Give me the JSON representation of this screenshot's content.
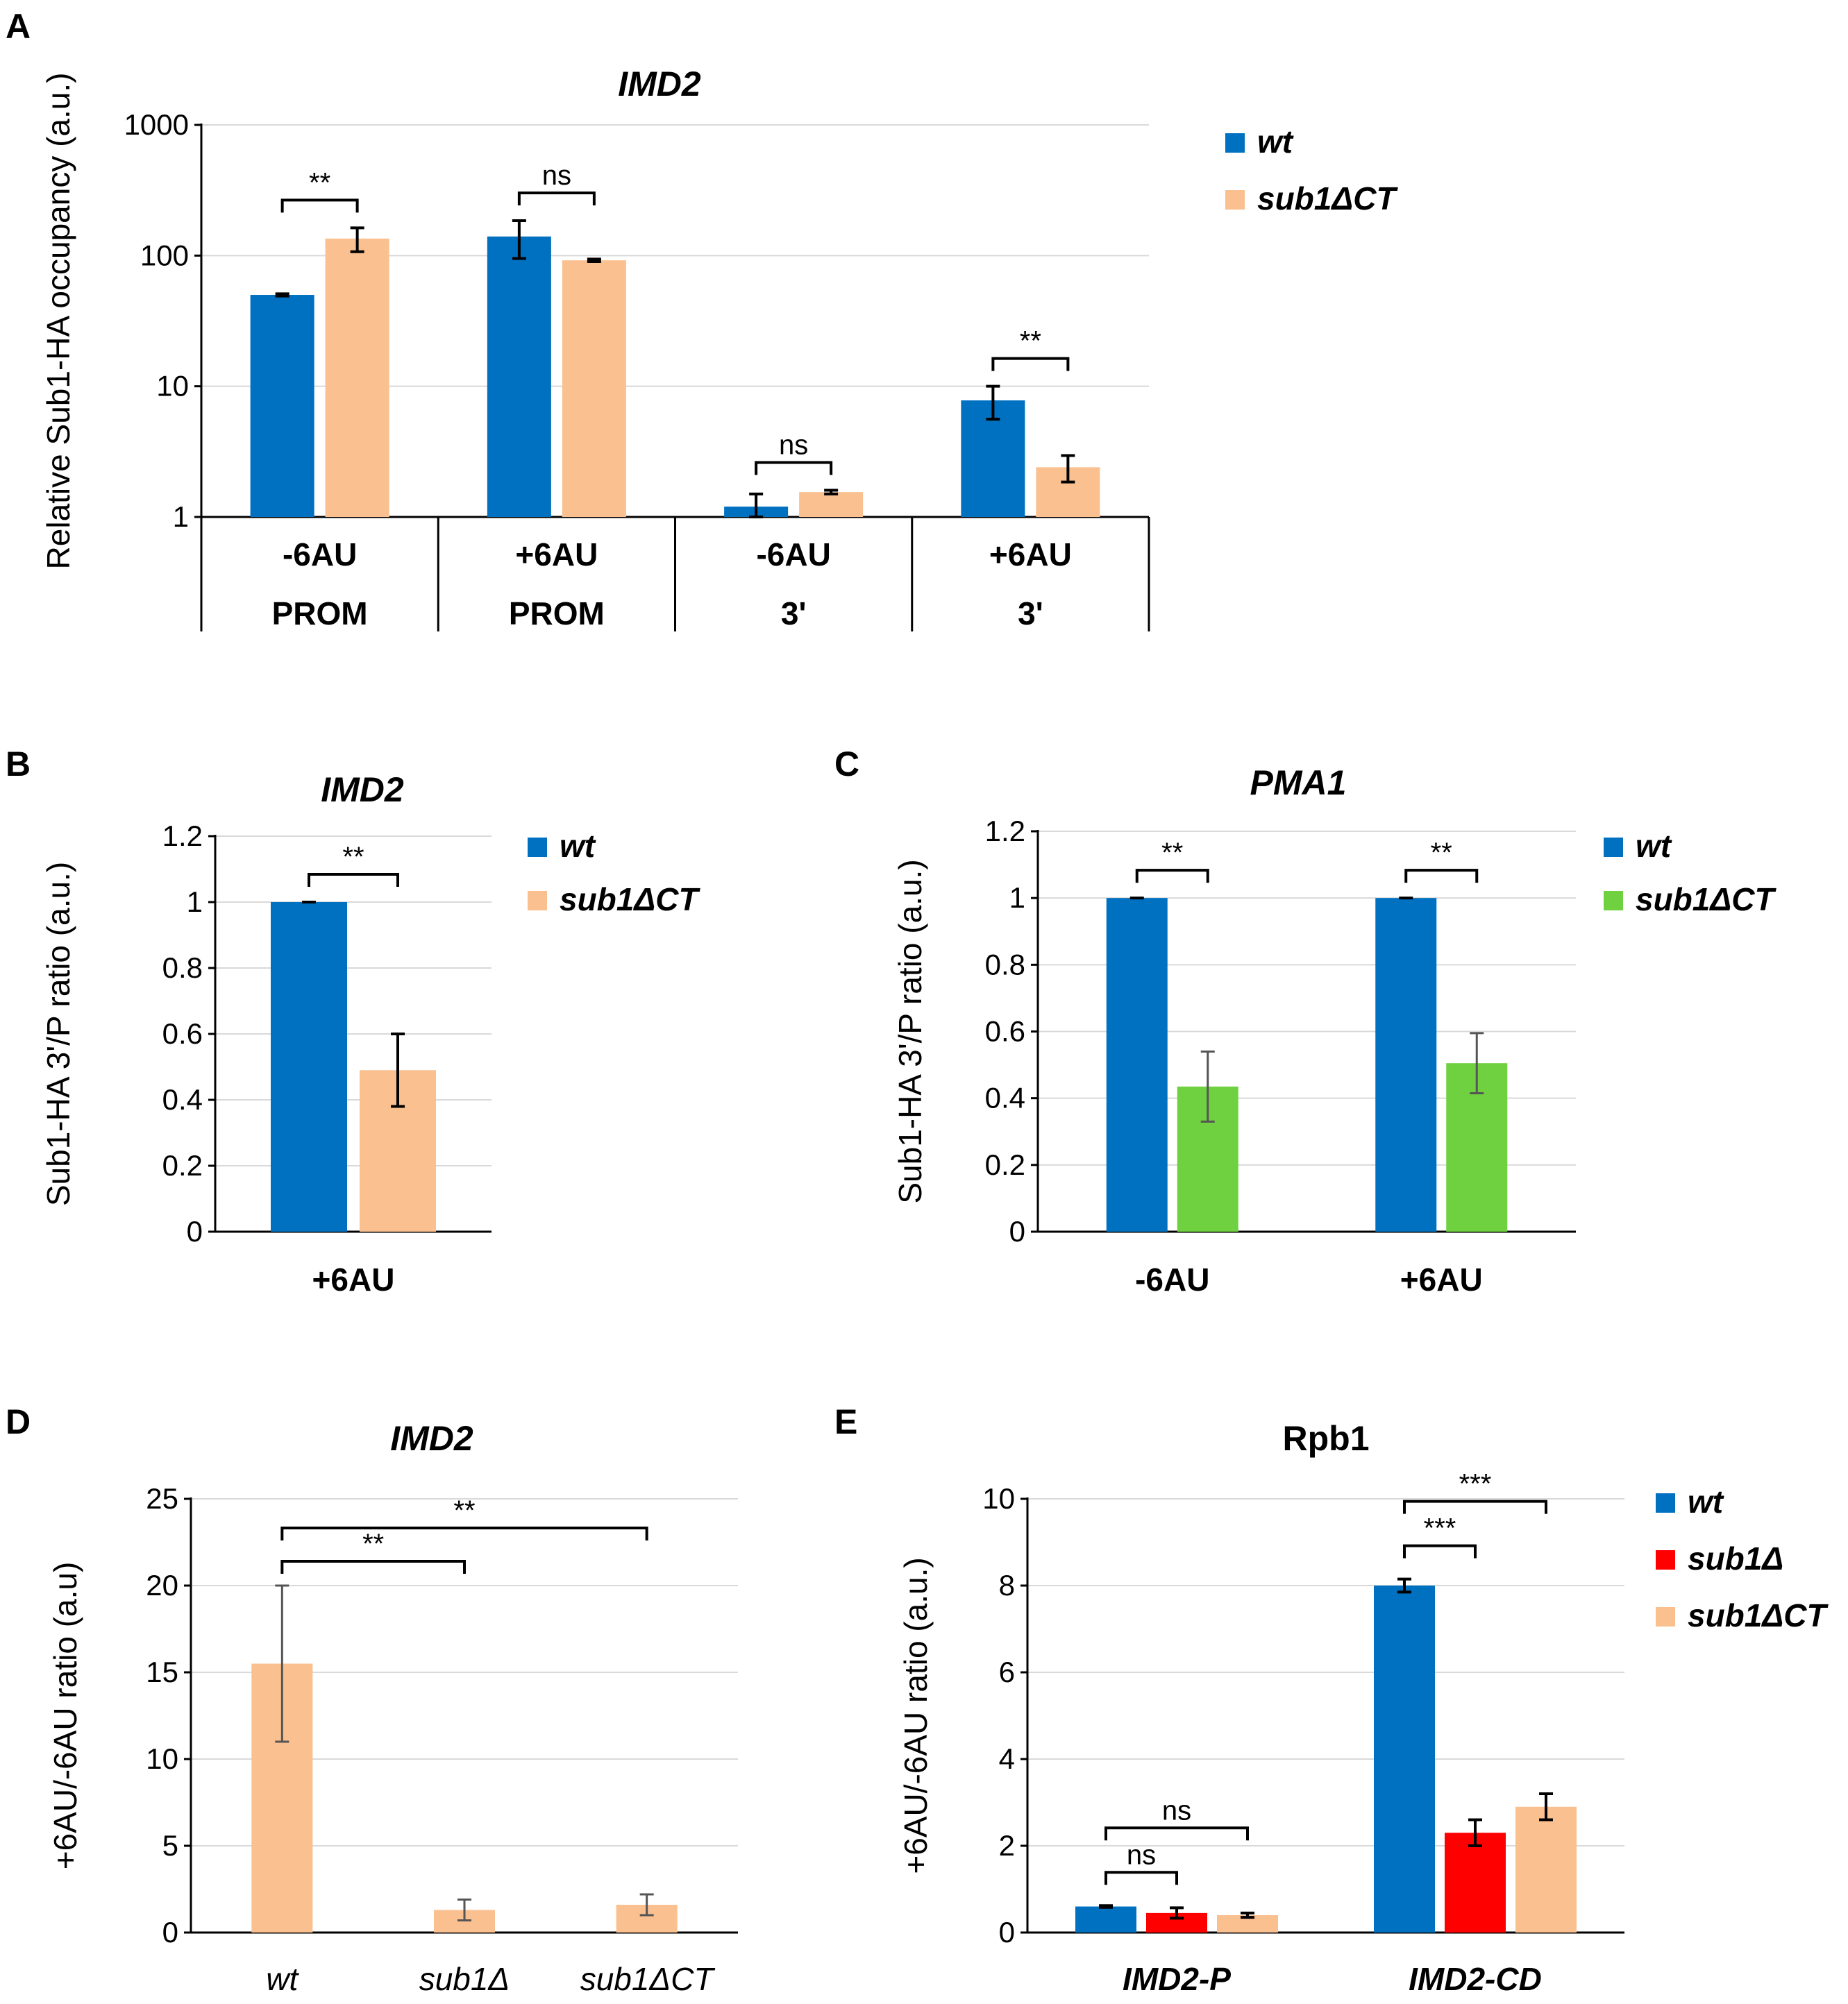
{
  "colors": {
    "wt": "#0070c0",
    "sub1dCT_orange": "#fac090",
    "sub1dCT_green": "#6fd040",
    "sub1d_red": "#ff0000"
  },
  "panels": {
    "A": {
      "label": "A"
    },
    "B": {
      "label": "B"
    },
    "C": {
      "label": "C"
    },
    "D": {
      "label": "D"
    },
    "E": {
      "label": "E"
    }
  },
  "chart_data": [
    {
      "id": "A",
      "type": "bar",
      "scale": "log",
      "title": "IMD2",
      "ylabel": "Relative Sub1-HA occupancy (a.u.)",
      "ylim": [
        1,
        1000
      ],
      "yticks": [
        "1",
        "10",
        "100",
        "1000"
      ],
      "categories": [
        {
          "line1": "-6AU",
          "line2": "PROM"
        },
        {
          "line1": "+6AU",
          "line2": "PROM"
        },
        {
          "line1": "-6AU",
          "line2": "3'"
        },
        {
          "line1": "+6AU",
          "line2": "3'"
        }
      ],
      "series": [
        {
          "name": "wt",
          "color": "#0070c0",
          "values": [
            50,
            140,
            1.2,
            7.8
          ],
          "errors": [
            1,
            45,
            0.3,
            2.2
          ]
        },
        {
          "name": "sub1ΔCT",
          "color": "#fac090",
          "values": [
            135,
            92,
            1.55,
            2.4
          ],
          "errors": [
            28,
            2,
            0.05,
            0.55
          ]
        }
      ],
      "significance": [
        {
          "group": 0,
          "label": "**"
        },
        {
          "group": 1,
          "label": "ns"
        },
        {
          "group": 2,
          "label": "ns"
        },
        {
          "group": 3,
          "label": "**"
        }
      ],
      "legend": [
        "wt",
        "sub1ΔCT"
      ]
    },
    {
      "id": "B",
      "type": "bar",
      "title": "IMD2",
      "ylabel": "Sub1-HA 3'/P ratio (a.u.)",
      "ylim": [
        0,
        1.2
      ],
      "yticks": [
        "0",
        "0.2",
        "0.4",
        "0.6",
        "0.8",
        "1",
        "1.2"
      ],
      "categories": [
        "+6AU"
      ],
      "series": [
        {
          "name": "wt",
          "color": "#0070c0",
          "values": [
            1.0
          ],
          "errors": [
            0
          ]
        },
        {
          "name": "sub1ΔCT",
          "color": "#fac090",
          "values": [
            0.49
          ],
          "errors": [
            0.11
          ]
        }
      ],
      "significance": [
        {
          "group": 0,
          "label": "**"
        }
      ],
      "legend": [
        "wt",
        "sub1ΔCT"
      ]
    },
    {
      "id": "C",
      "type": "bar",
      "title": "PMA1",
      "ylabel": "Sub1-HA 3'/P ratio (a.u.)",
      "ylim": [
        0,
        1.2
      ],
      "yticks": [
        "0",
        "0.2",
        "0.4",
        "0.6",
        "0.8",
        "1",
        "1.2"
      ],
      "categories": [
        "-6AU",
        "+6AU"
      ],
      "series": [
        {
          "name": "wt",
          "color": "#0070c0",
          "values": [
            1.0,
            1.0
          ],
          "errors": [
            0,
            0
          ]
        },
        {
          "name": "sub1ΔCT",
          "color": "#6fd040",
          "values": [
            0.435,
            0.505
          ],
          "errors": [
            0.105,
            0.09
          ]
        }
      ],
      "significance": [
        {
          "group": 0,
          "label": "**"
        },
        {
          "group": 1,
          "label": "**"
        }
      ],
      "legend": [
        "wt",
        "sub1ΔCT"
      ]
    },
    {
      "id": "D",
      "type": "bar",
      "title": "IMD2",
      "ylabel": "+6AU/-6AU  ratio (a.u)",
      "ylim": [
        0,
        25
      ],
      "yticks": [
        "0",
        "5",
        "10",
        "15",
        "20",
        "25"
      ],
      "categories": [
        "wt",
        "sub1Δ",
        "sub1ΔCT"
      ],
      "series": [
        {
          "name": "ratio",
          "color": "#fac090",
          "values": [
            15.5,
            1.3,
            1.6
          ],
          "errors": [
            4.5,
            0.6,
            0.6
          ]
        }
      ],
      "significance": [
        {
          "from": 0,
          "to": 1,
          "label": "**"
        },
        {
          "from": 0,
          "to": 2,
          "label": "**"
        }
      ]
    },
    {
      "id": "E",
      "type": "bar",
      "title": "Rpb1",
      "ylabel": "+6AU/-6AU  ratio (a.u.)",
      "ylim": [
        0,
        10
      ],
      "yticks": [
        "0",
        "2",
        "4",
        "6",
        "8",
        "10"
      ],
      "categories": [
        "IMD2-P",
        "IMD2-CD"
      ],
      "series": [
        {
          "name": "wt",
          "color": "#0070c0",
          "values": [
            0.6,
            8.0
          ],
          "errors": [
            0.02,
            0.15
          ]
        },
        {
          "name": "sub1Δ",
          "color": "#ff0000",
          "values": [
            0.45,
            2.3
          ],
          "errors": [
            0.12,
            0.3
          ]
        },
        {
          "name": "sub1ΔCT",
          "color": "#fac090",
          "values": [
            0.4,
            2.9
          ],
          "errors": [
            0.05,
            0.3
          ]
        }
      ],
      "significance": [
        {
          "group": 0,
          "from": 0,
          "to": 1,
          "label": "ns"
        },
        {
          "group": 0,
          "from": 0,
          "to": 2,
          "label": "ns"
        },
        {
          "group": 1,
          "from": 0,
          "to": 1,
          "label": "***"
        },
        {
          "group": 1,
          "from": 0,
          "to": 2,
          "label": "***"
        }
      ],
      "legend": [
        "wt",
        "sub1Δ",
        "sub1ΔCT"
      ]
    }
  ]
}
